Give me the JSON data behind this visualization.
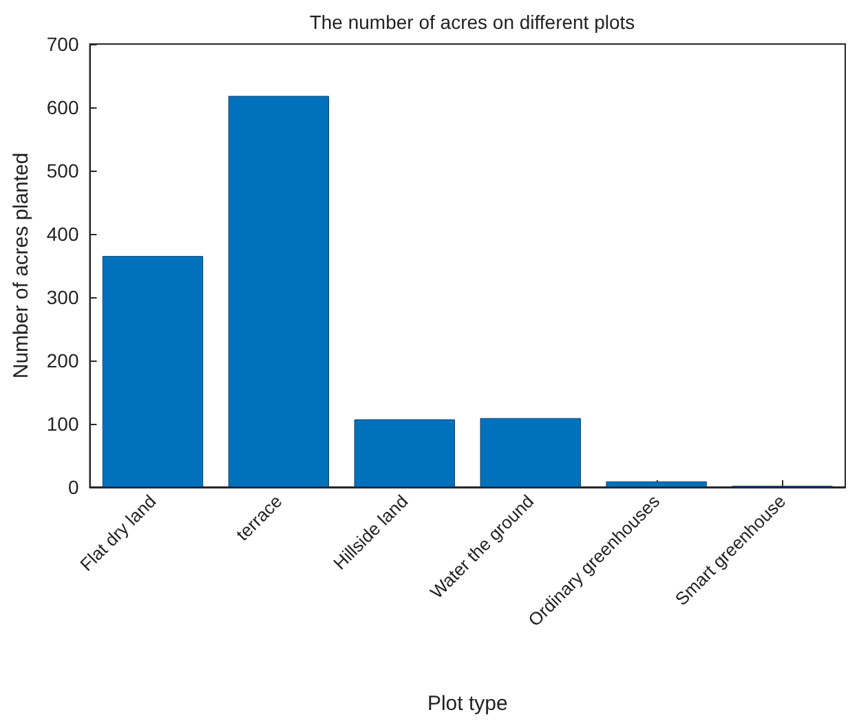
{
  "chart_data": {
    "type": "bar",
    "title": "The number of acres on different plots",
    "xlabel": "Plot type",
    "ylabel": "Number of acres planted",
    "categories": [
      "Flat dry land",
      "terrace",
      "Hillside land",
      "Water the ground",
      "Ordinary greenhouses",
      "Smart greenhouse"
    ],
    "values": [
      365,
      618,
      107,
      109,
      9,
      2
    ],
    "color": "#0072bd",
    "ylim": [
      0,
      700
    ],
    "yticks": [
      0,
      100,
      200,
      300,
      400,
      500,
      600,
      700
    ],
    "grid": false
  }
}
